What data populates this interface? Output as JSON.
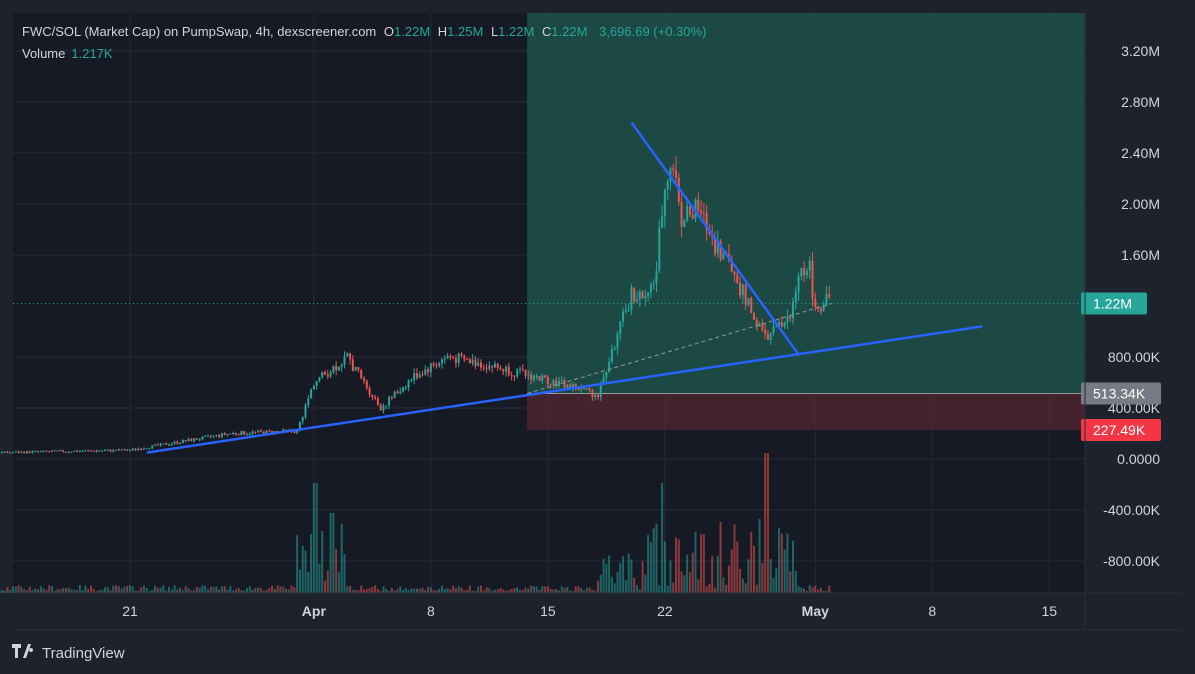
{
  "header": {
    "symbol": "FWC/SOL (Market Cap) on PumpSwap, 4h, dexscreener.com",
    "o_label": "O",
    "o_value": "1.22M",
    "h_label": "H",
    "h_value": "1.25M",
    "l_label": "L",
    "l_value": "1.22M",
    "c_label": "C",
    "c_value": "1.22M",
    "change": "3,696.69 (+0.30%)"
  },
  "volume_legend": {
    "label": "Volume",
    "value": "1.217K"
  },
  "footer": {
    "brand": "TradingView",
    "logo_icon": "tradingview-logo-icon"
  },
  "colors": {
    "up": "#26a69a",
    "down": "#ef5350",
    "trendline": "#2962ff",
    "profit_zone": "#1f5a4f",
    "loss_zone": "#4a2530",
    "background": "#161a25"
  },
  "chart_data": {
    "type": "candlestick",
    "title": "FWC/SOL (Market Cap) on PumpSwap, 4h, dexscreener.com",
    "x_ticks": [
      "21",
      "Apr",
      "8",
      "15",
      "22",
      "May",
      "8",
      "15"
    ],
    "y_ticks": [
      "3.20M",
      "2.80M",
      "2.40M",
      "2.00M",
      "1.60M",
      "800.00K",
      "400.00K",
      "0.0000",
      "-400.00K",
      "-800.00K"
    ],
    "ylim": [
      -1000000,
      3400000
    ],
    "price_badges": [
      {
        "label": "1.22M",
        "value": 1220000,
        "color": "#26a69a"
      },
      {
        "label": "513.34K",
        "value": 513340,
        "color": "#787b86"
      },
      {
        "label": "227.49K",
        "value": 227490,
        "color": "#f23645"
      }
    ],
    "long_position": {
      "entry": 513340,
      "stop": 227490,
      "target": 3450000,
      "start_date": "Apr 14",
      "end_date": "May 4"
    },
    "trendlines": [
      {
        "name": "rising support",
        "from": [
          "Mar 22",
          50000
        ],
        "to": [
          "May 11",
          1040000
        ]
      },
      {
        "name": "falling resistance",
        "from": [
          "Apr 20",
          2640000
        ],
        "to": [
          "Apr 30",
          820000
        ]
      }
    ],
    "grid": true,
    "series": []
  }
}
